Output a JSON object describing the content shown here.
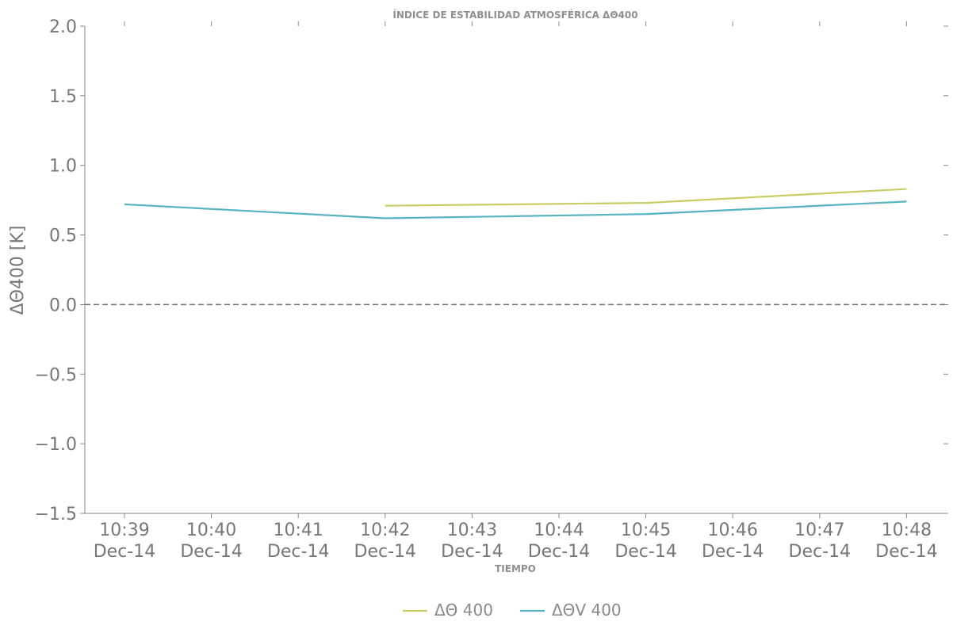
{
  "chart_data": {
    "type": "line",
    "title": "ÍNDICE DE ESTABILIDAD ATMOSFÉRICA ΔΘ400",
    "xlabel": "TIEMPO",
    "ylabel": "ΔΘ400 [K]",
    "ylim": [
      -1.5,
      2.0
    ],
    "yticks": [
      2.0,
      1.5,
      1.0,
      0.5,
      0.0,
      -0.5,
      -1.0,
      -1.5
    ],
    "ytick_labels": [
      "2.0",
      "1.5",
      "1.0",
      "0.5",
      "0.0",
      "−0.5",
      "−1.0",
      "−1.5"
    ],
    "categories": [
      "10:39",
      "10:40",
      "10:41",
      "10:42",
      "10:43",
      "10:44",
      "10:45",
      "10:46",
      "10:47",
      "10:48"
    ],
    "category_sublabels": [
      "Dec-14",
      "Dec-14",
      "Dec-14",
      "Dec-14",
      "Dec-14",
      "Dec-14",
      "Dec-14",
      "Dec-14",
      "Dec-14",
      "Dec-14"
    ],
    "reference_line": {
      "y": 0.0,
      "style": "dashed",
      "color": "#777777"
    },
    "series": [
      {
        "name": "ΔΘ 400",
        "color": "#c9cc63",
        "values": [
          null,
          null,
          null,
          0.71,
          null,
          null,
          0.73,
          null,
          null,
          0.83
        ]
      },
      {
        "name": "ΔΘV 400",
        "color": "#55b3c2",
        "values": [
          0.72,
          null,
          null,
          0.62,
          null,
          null,
          0.65,
          null,
          null,
          0.74
        ]
      }
    ],
    "legend_position": "bottom-center",
    "grid": false
  }
}
